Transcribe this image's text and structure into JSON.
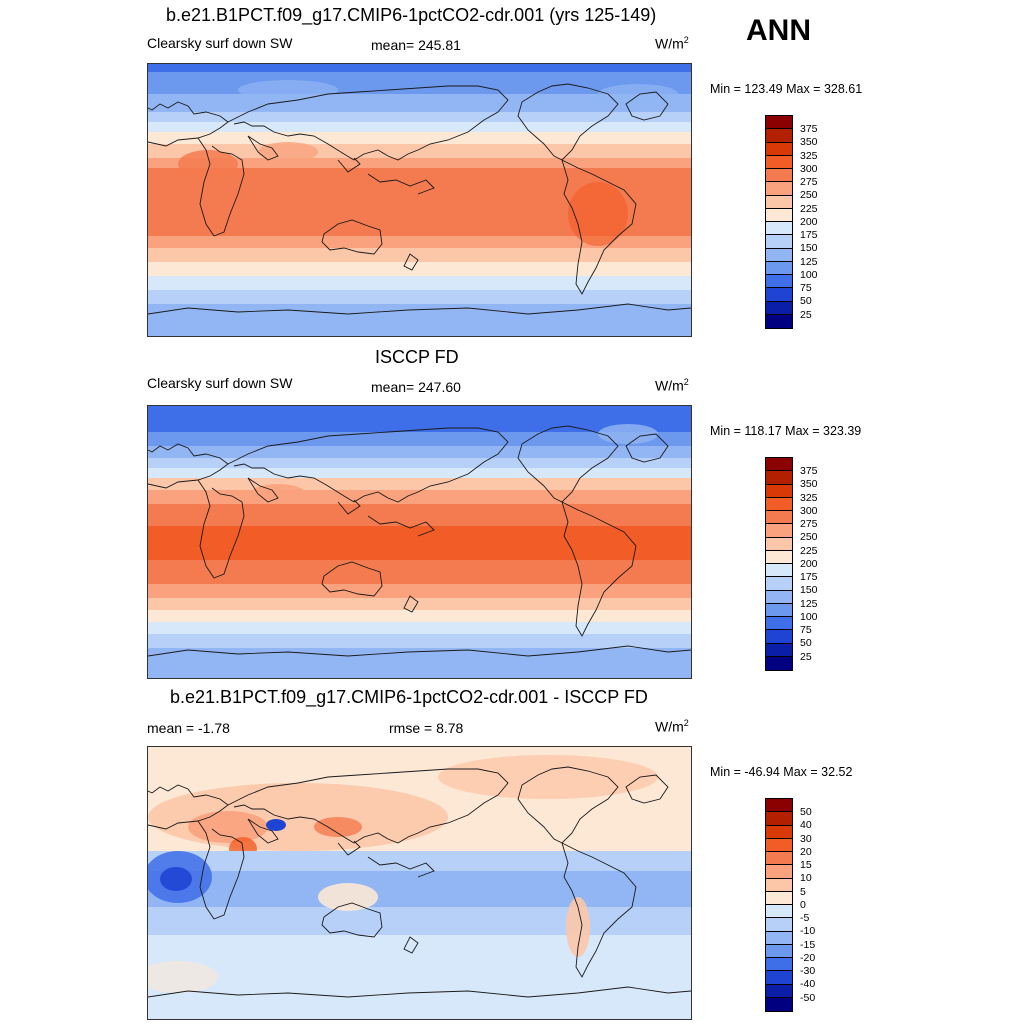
{
  "season": "ANN",
  "units_base": "W/m",
  "units_exp": "2",
  "panels": [
    {
      "title": "b.e21.B1PCT.f09_g17.CMIP6-1pctCO2-cdr.001 (yrs 125-149)",
      "left_label": "Clearsky surf down SW",
      "center_label": "mean= 245.81",
      "minmax": "Min = 123.49 Max = 328.61",
      "colorbar_ticks": [
        "375",
        "350",
        "325",
        "300",
        "275",
        "250",
        "225",
        "200",
        "175",
        "150",
        "125",
        "100",
        "75",
        "50",
        "25"
      ]
    },
    {
      "title": "ISCCP FD",
      "left_label": "Clearsky surf down SW",
      "center_label": "mean= 247.60",
      "minmax": "Min = 118.17 Max = 323.39",
      "colorbar_ticks": [
        "375",
        "350",
        "325",
        "300",
        "275",
        "250",
        "225",
        "200",
        "175",
        "150",
        "125",
        "100",
        "75",
        "50",
        "25"
      ]
    },
    {
      "title": "b.e21.B1PCT.f09_g17.CMIP6-1pctCO2-cdr.001 - ISCCP FD",
      "left_label": "mean =  -1.78",
      "center_label": "rmse =   8.78",
      "minmax": "Min = -46.94 Max =  32.52",
      "colorbar_ticks": [
        "50",
        "40",
        "30",
        "20",
        "15",
        "10",
        "5",
        "0",
        "-5",
        "-10",
        "-15",
        "-20",
        "-30",
        "-40",
        "-50"
      ]
    }
  ],
  "colors": {
    "scale": [
      "#8b0000",
      "#b22000",
      "#d93a05",
      "#f25c26",
      "#f47b4f",
      "#f9a27d",
      "#fcc7a9",
      "#fde8d6",
      "#d8e8fb",
      "#b6d0f8",
      "#92b6f3",
      "#6c98ee",
      "#3f6fe8",
      "#1f44d4",
      "#0a1ea8",
      "#000080"
    ],
    "coast": "#1a1a1a"
  }
}
